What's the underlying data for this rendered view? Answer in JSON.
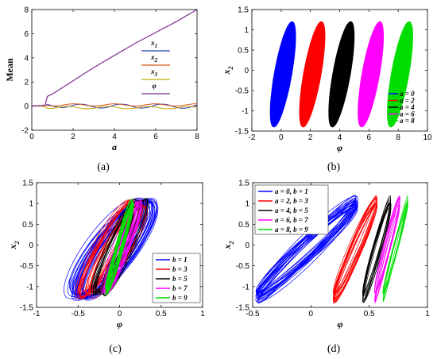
{
  "chart_data": [
    {
      "id": "a",
      "type": "line",
      "panel_label": "(a)",
      "xlabel": "a",
      "ylabel": "Mean",
      "xlim": [
        0,
        8
      ],
      "ylim": [
        -2,
        8
      ],
      "xticks": [
        0,
        2,
        4,
        6,
        8
      ],
      "yticks": [
        -2,
        0,
        2,
        4,
        6,
        8
      ],
      "legend_position": "center-right",
      "series": [
        {
          "name": "x_1",
          "color": "#1f3fbf",
          "x": [
            0,
            0.5,
            0.75,
            1,
            2,
            3,
            4,
            5,
            6,
            7,
            8
          ],
          "y": [
            0.02,
            0.03,
            0.05,
            0.02,
            0.05,
            -0.05,
            0.05,
            -0.05,
            0.05,
            -0.05,
            0.02
          ]
        },
        {
          "name": "x_2",
          "color": "#d95319",
          "x": [
            0,
            0.5,
            0.75,
            1,
            2,
            3,
            4,
            5,
            6,
            7,
            8
          ],
          "y": [
            0.0,
            0.0,
            0.1,
            0.1,
            0.1,
            0.1,
            0.1,
            0.1,
            0.1,
            0.1,
            0.1
          ]
        },
        {
          "name": "x_3",
          "color": "#c8a800",
          "x": [
            0,
            0.5,
            0.75,
            1,
            2,
            3,
            4,
            5,
            6,
            7,
            8
          ],
          "y": [
            0.0,
            0.0,
            -0.1,
            -0.15,
            -0.1,
            -0.15,
            -0.1,
            -0.15,
            -0.1,
            -0.15,
            -0.1
          ]
        },
        {
          "name": "φ",
          "color": "#7e2f8e",
          "x": [
            0,
            0.5,
            0.65,
            0.75,
            1,
            2,
            3,
            4,
            5,
            6,
            7,
            8
          ],
          "y": [
            0.0,
            0.05,
            0.1,
            0.8,
            1.0,
            2.1,
            3.2,
            4.2,
            5.2,
            6.1,
            7.0,
            8.0
          ]
        }
      ],
      "legend_labels": [
        {
          "base": "x",
          "sub": "1"
        },
        {
          "base": "x",
          "sub": "2"
        },
        {
          "base": "x",
          "sub": "3"
        },
        {
          "base": "φ",
          "sub": ""
        }
      ]
    },
    {
      "id": "b",
      "type": "scatter",
      "panel_label": "(b)",
      "xlabel": "φ",
      "ylabel": "x",
      "ylabel_sub": "2",
      "xlim": [
        -2,
        10
      ],
      "ylim": [
        -1.5,
        1.5
      ],
      "xticks": [
        -2,
        0,
        2,
        4,
        6,
        8,
        10
      ],
      "yticks": [
        -1.5,
        -1,
        -0.5,
        0,
        0.5,
        1,
        1.5
      ],
      "legend_position": "bottom-right",
      "series": [
        {
          "name": "a = 0",
          "color": "#0000ff",
          "center": 0.2,
          "halfwidth": 0.75
        },
        {
          "name": "a = 2",
          "color": "#ff0000",
          "center": 2.2,
          "halfwidth": 0.75
        },
        {
          "name": "a = 4",
          "color": "#000000",
          "center": 4.2,
          "halfwidth": 0.75
        },
        {
          "name": "a = 6",
          "color": "#ff00ff",
          "center": 6.2,
          "halfwidth": 0.75
        },
        {
          "name": "a = 8",
          "color": "#00dd00",
          "center": 8.2,
          "halfwidth": 0.75
        }
      ],
      "ymin": -1.4,
      "ymax": 1.2
    },
    {
      "id": "c",
      "type": "scatter",
      "panel_label": "(c)",
      "xlabel": "φ",
      "ylabel": "x",
      "ylabel_sub": "2",
      "xlim": [
        -1,
        1
      ],
      "ylim": [
        -1.5,
        1.5
      ],
      "xticks": [
        -1,
        -0.5,
        0,
        0.5,
        1
      ],
      "yticks": [
        -1.5,
        -1,
        -0.5,
        0,
        0.5,
        1,
        1.5
      ],
      "legend_position": "bottom-right",
      "series": [
        {
          "name": "b = 1",
          "color": "#0000ff"
        },
        {
          "name": "b = 3",
          "color": "#ff0000"
        },
        {
          "name": "b = 5",
          "color": "#000000"
        },
        {
          "name": "b = 7",
          "color": "#ff00ff"
        },
        {
          "name": "b = 9",
          "color": "#00dd00"
        }
      ]
    },
    {
      "id": "d",
      "type": "scatter",
      "panel_label": "(d)",
      "xlabel": "φ",
      "ylabel": "x",
      "ylabel_sub": "2",
      "xlim": [
        -0.5,
        1
      ],
      "ylim": [
        -1.5,
        1.5
      ],
      "xticks": [
        -0.5,
        0,
        0.5,
        1
      ],
      "yticks": [
        -1.5,
        -1,
        -0.5,
        0,
        0.5,
        1,
        1.5
      ],
      "legend_position": "top-left",
      "series": [
        {
          "name": "a = 0, b = 1",
          "color": "#0000ff",
          "x_at_ymin": -0.45,
          "x_at_ymax": 0.38
        },
        {
          "name": "a = 2, b = 3",
          "color": "#ff0000",
          "x_at_ymin": 0.2,
          "x_at_ymax": 0.56
        },
        {
          "name": "a = 4, b = 5",
          "color": "#000000",
          "x_at_ymin": 0.45,
          "x_at_ymax": 0.68
        },
        {
          "name": "a = 6, b = 7",
          "color": "#ff00ff",
          "x_at_ymin": 0.55,
          "x_at_ymax": 0.76
        },
        {
          "name": "a = 8, b = 9",
          "color": "#00dd00",
          "x_at_ymin": 0.62,
          "x_at_ymax": 0.83
        }
      ]
    }
  ]
}
